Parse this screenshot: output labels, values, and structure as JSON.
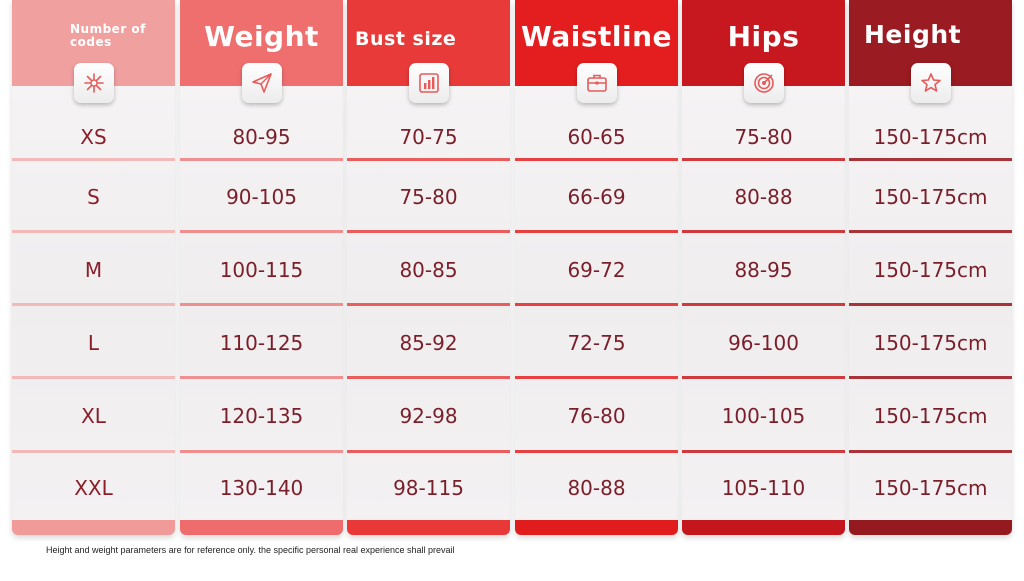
{
  "columns": [
    {
      "header": "Number of codes",
      "icon": "sparkle-icon",
      "color": "#f1a0a0",
      "foot": "#f09a9a",
      "values": [
        "XS",
        "S",
        "M",
        "L",
        "XL",
        "XXL"
      ]
    },
    {
      "header": "Weight",
      "icon": "paper-plane-icon",
      "color": "#ef6f6f",
      "foot": "#ef6c6c",
      "values": [
        "80-95",
        "90-105",
        "100-115",
        "110-125",
        "120-135",
        "130-140"
      ]
    },
    {
      "header": "Bust size",
      "icon": "bar-chart-icon",
      "color": "#e93a3a",
      "foot": "#e83838",
      "values": [
        "70-75",
        "75-80",
        "80-85",
        "85-92",
        "92-98",
        "98-115"
      ]
    },
    {
      "header": "Waistline",
      "icon": "briefcase-icon",
      "color": "#e41e1e",
      "foot": "#e01c1c",
      "values": [
        "60-65",
        "66-69",
        "69-72",
        "72-75",
        "76-80",
        "80-88"
      ]
    },
    {
      "header": "Hips",
      "icon": "target-icon",
      "color": "#c8181f",
      "foot": "#c3161d",
      "values": [
        "75-80",
        "80-88",
        "88-95",
        "96-100",
        "100-105",
        "105-110"
      ]
    },
    {
      "header": "Height",
      "icon": "star-icon",
      "color": "#9a1b22",
      "foot": "#941a20",
      "values": [
        "150-175cm",
        "150-175cm",
        "150-175cm",
        "150-175cm",
        "150-175cm",
        "150-175cm"
      ]
    }
  ],
  "footnote": "Height and weight parameters are for reference only. the specific personal real experience shall prevail"
}
